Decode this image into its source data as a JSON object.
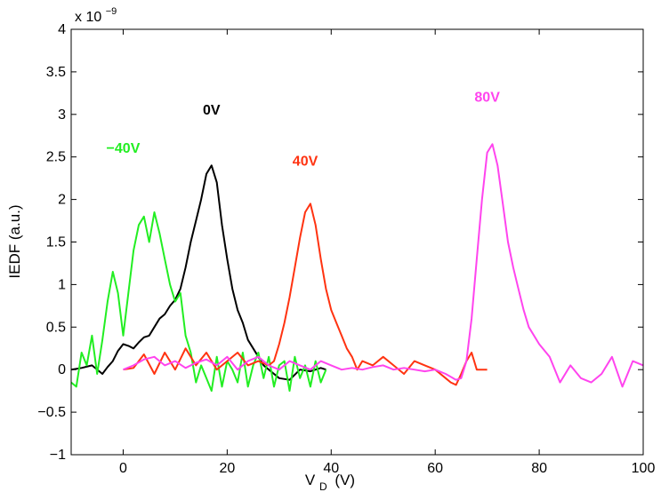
{
  "chart_data": {
    "type": "line",
    "title": "",
    "xlabel": "V",
    "xlabel_sub": "D",
    "xlabel_unit": "(V)",
    "ylabel": "IEDF (a.u.)",
    "y_exponent_base": "x 10",
    "y_exponent_power": "−9",
    "xlim": [
      -10,
      100
    ],
    "ylim": [
      -1,
      4
    ],
    "x_ticks": [
      0,
      20,
      40,
      60,
      80,
      100
    ],
    "x_tick_labels": [
      "0",
      "20",
      "40",
      "60",
      "80",
      "100"
    ],
    "y_ticks": [
      -1,
      -0.5,
      0,
      0.5,
      1,
      1.5,
      2,
      2.5,
      3,
      3.5,
      4
    ],
    "y_tick_labels": [
      "−1",
      "−0.5",
      "0",
      "0.5",
      "1",
      "1.5",
      "2",
      "2.5",
      "3",
      "3.5",
      "4"
    ],
    "grid": false,
    "series": [
      {
        "name": "0V",
        "color": "#000000",
        "label_at": [
          17,
          3.0
        ],
        "x": [
          -10,
          -8,
          -6,
          -4,
          -3,
          -2,
          -1,
          0,
          1,
          2,
          3,
          4,
          5,
          6,
          7,
          8,
          9,
          10,
          11,
          12,
          13,
          14,
          15,
          16,
          17,
          18,
          19,
          20,
          21,
          22,
          23,
          24,
          25,
          26,
          27,
          28,
          29,
          30,
          32,
          34,
          36,
          38,
          39
        ],
        "y": [
          0.0,
          0.02,
          0.05,
          -0.05,
          0.03,
          0.1,
          0.22,
          0.3,
          0.28,
          0.25,
          0.32,
          0.38,
          0.4,
          0.5,
          0.6,
          0.65,
          0.75,
          0.82,
          0.95,
          1.2,
          1.5,
          1.75,
          2.0,
          2.3,
          2.4,
          2.2,
          1.7,
          1.3,
          0.95,
          0.7,
          0.55,
          0.35,
          0.25,
          0.15,
          0.05,
          0.0,
          -0.05,
          -0.1,
          -0.12,
          0.0,
          -0.02,
          0.02,
          0.0
        ]
      },
      {
        "name": "−40V",
        "color": "#22ee22",
        "label_at": [
          0,
          2.55
        ],
        "x": [
          -10,
          -9,
          -8,
          -7,
          -6,
          -5,
          -4,
          -3,
          -2,
          -1,
          0,
          1,
          2,
          3,
          4,
          5,
          6,
          7,
          8,
          9,
          10,
          11,
          12,
          13,
          14,
          15,
          16,
          17,
          18,
          19,
          20,
          21,
          22,
          23,
          24,
          25,
          26,
          27,
          28,
          29,
          30,
          31,
          32,
          33,
          34,
          35,
          36,
          37,
          38,
          39
        ],
        "y": [
          -0.15,
          -0.2,
          0.2,
          0.05,
          0.4,
          -0.05,
          0.35,
          0.8,
          1.15,
          0.9,
          0.4,
          0.9,
          1.4,
          1.7,
          1.8,
          1.5,
          1.85,
          1.6,
          1.3,
          1.0,
          0.8,
          0.9,
          0.4,
          0.2,
          -0.15,
          0.05,
          -0.1,
          -0.25,
          0.15,
          -0.2,
          0.1,
          0.0,
          -0.15,
          0.2,
          -0.2,
          0.05,
          0.2,
          -0.1,
          0.15,
          -0.2,
          0.05,
          0.1,
          -0.25,
          0.15,
          -0.1,
          0.05,
          -0.2,
          0.1,
          -0.15,
          0.0
        ]
      },
      {
        "name": "40V",
        "color": "#ff3311",
        "label_at": [
          35,
          2.4
        ],
        "x": [
          0,
          2,
          4,
          6,
          8,
          10,
          12,
          14,
          16,
          18,
          20,
          22,
          24,
          26,
          28,
          29,
          30,
          31,
          32,
          33,
          34,
          35,
          36,
          37,
          38,
          39,
          40,
          41,
          42,
          43,
          44,
          45,
          46,
          48,
          50,
          52,
          54,
          56,
          58,
          60,
          62,
          63,
          64,
          65,
          66,
          67,
          68,
          70
        ],
        "y": [
          0.0,
          0.02,
          0.18,
          -0.05,
          0.2,
          0.0,
          0.25,
          0.05,
          0.2,
          0.0,
          0.1,
          0.2,
          0.05,
          0.1,
          0.05,
          0.1,
          0.3,
          0.55,
          0.85,
          1.2,
          1.55,
          1.85,
          1.95,
          1.7,
          1.3,
          0.95,
          0.7,
          0.55,
          0.4,
          0.25,
          0.15,
          0.0,
          0.1,
          0.05,
          0.15,
          0.05,
          -0.05,
          0.1,
          0.05,
          0.0,
          -0.1,
          -0.15,
          -0.18,
          -0.05,
          0.1,
          0.2,
          0.0,
          0.0
        ]
      },
      {
        "name": "80V",
        "color": "#ff44ee",
        "label_at": [
          70,
          3.15
        ],
        "x": [
          0,
          2,
          4,
          6,
          8,
          10,
          12,
          14,
          16,
          18,
          20,
          22,
          24,
          26,
          28,
          30,
          32,
          34,
          36,
          38,
          40,
          42,
          44,
          46,
          48,
          50,
          52,
          54,
          56,
          58,
          60,
          62,
          64,
          65,
          66,
          67,
          68,
          69,
          70,
          71,
          72,
          73,
          74,
          75,
          76,
          77,
          78,
          80,
          82,
          84,
          86,
          88,
          90,
          92,
          94,
          96,
          98,
          100
        ],
        "y": [
          0.0,
          0.05,
          0.12,
          0.15,
          0.05,
          0.1,
          0.02,
          0.08,
          0.12,
          0.05,
          0.15,
          0.0,
          0.1,
          0.15,
          0.05,
          0.0,
          0.1,
          0.05,
          0.0,
          0.1,
          0.05,
          0.0,
          0.02,
          0.0,
          0.03,
          0.05,
          0.0,
          0.02,
          0.0,
          -0.02,
          0.0,
          -0.05,
          -0.12,
          -0.1,
          0.1,
          0.6,
          1.3,
          2.0,
          2.55,
          2.65,
          2.4,
          1.95,
          1.5,
          1.2,
          0.95,
          0.7,
          0.5,
          0.3,
          0.15,
          -0.15,
          0.05,
          -0.1,
          -0.15,
          -0.05,
          0.15,
          -0.2,
          0.1,
          0.05
        ]
      }
    ]
  }
}
